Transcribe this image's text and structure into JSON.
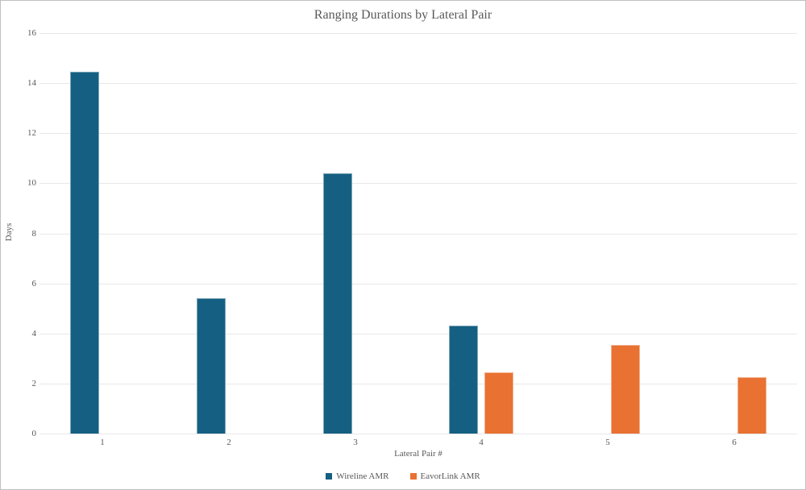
{
  "chart_data": {
    "type": "bar",
    "title": "Ranging Durations by Lateral Pair",
    "xlabel": "Lateral Pair #",
    "ylabel": "Days",
    "categories": [
      "1",
      "2",
      "3",
      "4",
      "5",
      "6"
    ],
    "series": [
      {
        "name": "Wireline AMR",
        "color": "#156082",
        "values": [
          14.45,
          5.4,
          10.4,
          4.3,
          null,
          null
        ]
      },
      {
        "name": "EavorLink AMR",
        "color": "#E97132",
        "values": [
          null,
          null,
          null,
          2.45,
          3.55,
          2.25
        ]
      }
    ],
    "ylim": [
      0,
      16
    ],
    "ytick_step": 2,
    "grid": true,
    "legend_position": "bottom",
    "colors": {
      "text": "#595959",
      "gridline": "#e7e7e7",
      "background": "#ffffff"
    }
  }
}
